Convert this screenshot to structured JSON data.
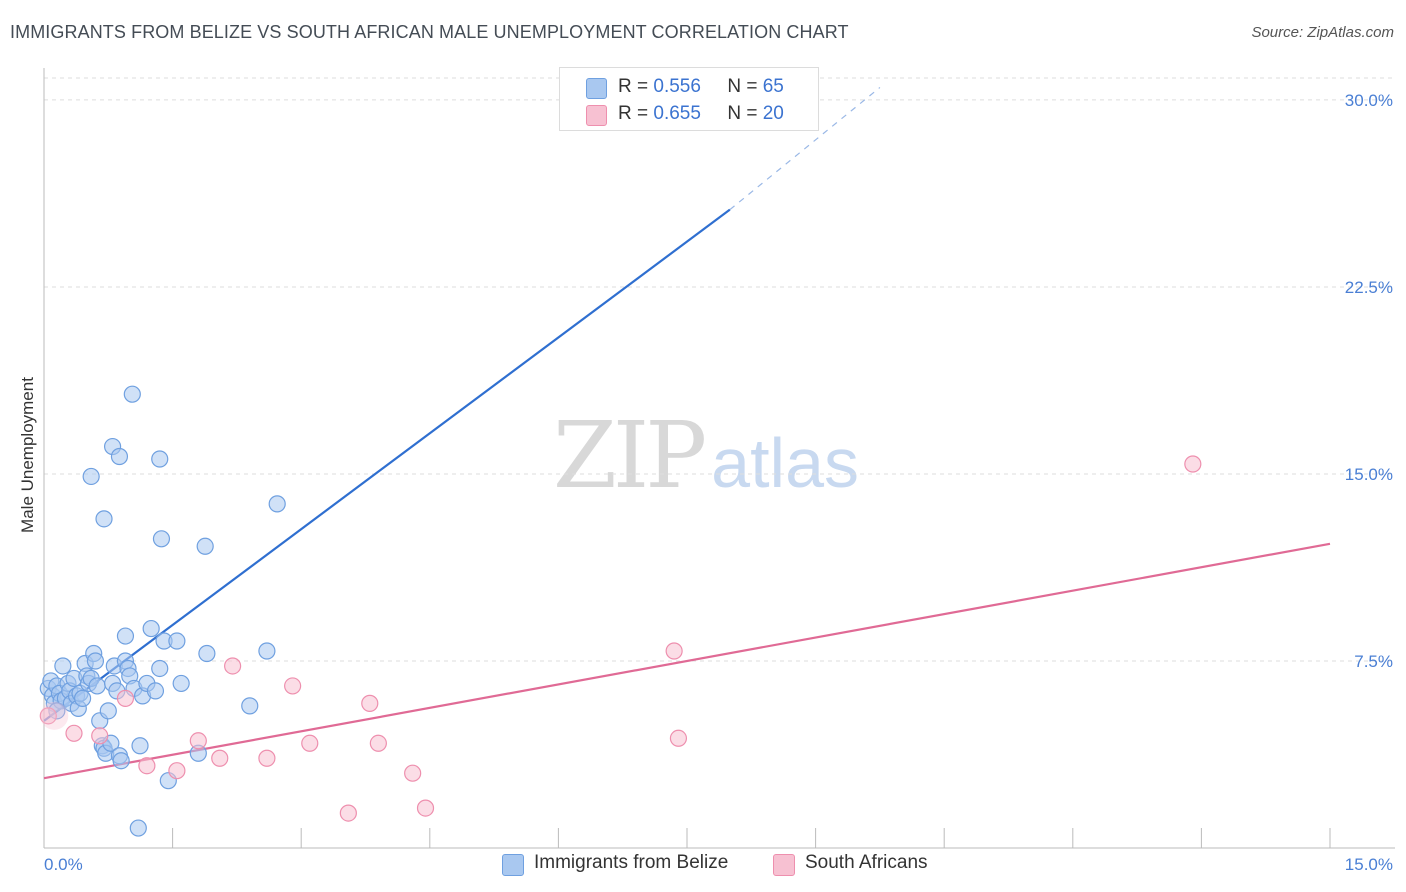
{
  "title": "IMMIGRANTS FROM BELIZE VS SOUTH AFRICAN MALE UNEMPLOYMENT CORRELATION CHART",
  "source": "Source: ZipAtlas.com",
  "watermark": {
    "zip": "ZIP",
    "atlas": "atlas"
  },
  "legend": {
    "rows": [
      {
        "r_label": "R =",
        "r_value": "0.556",
        "n_label": "N =",
        "n_value": "65"
      },
      {
        "r_label": "R =",
        "r_value": "0.655",
        "n_label": "N =",
        "n_value": "20"
      }
    ],
    "series_labels": [
      "Immigrants from Belize",
      "South Africans"
    ]
  },
  "colors": {
    "blue_fill": "#a9c8f0",
    "blue_stroke": "#6fa0e0",
    "blue_line": "#2f6fd0",
    "pink_fill": "#f7c1d2",
    "pink_stroke": "#ee8fae",
    "pink_line": "#e06a95",
    "tick_text": "#4a7fd4",
    "grid": "#dedede"
  },
  "chart_data": {
    "type": "scatter",
    "title": "IMMIGRANTS FROM BELIZE VS SOUTH AFRICAN MALE UNEMPLOYMENT CORRELATION CHART",
    "xlabel": "",
    "ylabel": "Male Unemployment",
    "xlim": [
      0,
      15
    ],
    "ylim": [
      0,
      31
    ],
    "x_tick_labels": [
      "0.0%",
      "15.0%"
    ],
    "y_ticks": [
      7.5,
      15.0,
      22.5,
      30.0
    ],
    "y_tick_labels": [
      "7.5%",
      "15.0%",
      "22.5%",
      "30.0%"
    ],
    "series": [
      {
        "name": "Immigrants from Belize",
        "R": 0.556,
        "N": 65,
        "points": [
          [
            0.05,
            6.4
          ],
          [
            0.08,
            6.7
          ],
          [
            0.1,
            6.1
          ],
          [
            0.12,
            5.8
          ],
          [
            0.15,
            6.5
          ],
          [
            0.18,
            6.2
          ],
          [
            0.2,
            5.9
          ],
          [
            0.22,
            7.3
          ],
          [
            0.25,
            6.0
          ],
          [
            0.28,
            6.6
          ],
          [
            0.3,
            6.3
          ],
          [
            0.32,
            5.8
          ],
          [
            0.35,
            6.8
          ],
          [
            0.38,
            6.1
          ],
          [
            0.4,
            5.6
          ],
          [
            0.42,
            6.2
          ],
          [
            0.45,
            6.0
          ],
          [
            0.48,
            7.4
          ],
          [
            0.5,
            6.9
          ],
          [
            0.52,
            6.6
          ],
          [
            0.55,
            6.8
          ],
          [
            0.58,
            7.8
          ],
          [
            0.6,
            7.5
          ],
          [
            0.62,
            6.5
          ],
          [
            0.65,
            5.1
          ],
          [
            0.68,
            4.1
          ],
          [
            0.7,
            4.0
          ],
          [
            0.72,
            3.8
          ],
          [
            0.75,
            5.5
          ],
          [
            0.78,
            4.2
          ],
          [
            0.8,
            6.6
          ],
          [
            0.82,
            7.3
          ],
          [
            0.85,
            6.3
          ],
          [
            0.88,
            3.7
          ],
          [
            0.9,
            3.5
          ],
          [
            0.95,
            7.5
          ],
          [
            0.98,
            7.2
          ],
          [
            1.0,
            6.9
          ],
          [
            1.05,
            6.4
          ],
          [
            1.1,
            0.8
          ],
          [
            1.12,
            4.1
          ],
          [
            1.15,
            6.1
          ],
          [
            1.2,
            6.6
          ],
          [
            1.25,
            8.8
          ],
          [
            1.3,
            6.3
          ],
          [
            1.35,
            7.2
          ],
          [
            1.4,
            8.3
          ],
          [
            1.45,
            2.7
          ],
          [
            1.55,
            8.3
          ],
          [
            1.6,
            6.6
          ],
          [
            1.8,
            3.8
          ],
          [
            1.9,
            7.8
          ],
          [
            2.4,
            5.7
          ],
          [
            2.6,
            7.9
          ],
          [
            0.55,
            14.9
          ],
          [
            0.7,
            13.2
          ],
          [
            0.8,
            16.1
          ],
          [
            0.88,
            15.7
          ],
          [
            1.03,
            18.2
          ],
          [
            1.35,
            15.6
          ],
          [
            1.37,
            12.4
          ],
          [
            1.88,
            12.1
          ],
          [
            2.72,
            13.8
          ],
          [
            0.95,
            8.5
          ],
          [
            0.15,
            5.5
          ]
        ]
      },
      {
        "name": "South Africans",
        "R": 0.655,
        "N": 20,
        "points": [
          [
            0.05,
            5.3
          ],
          [
            0.35,
            4.6
          ],
          [
            0.65,
            4.5
          ],
          [
            0.95,
            6.0
          ],
          [
            1.2,
            3.3
          ],
          [
            1.55,
            3.1
          ],
          [
            1.8,
            4.3
          ],
          [
            2.05,
            3.6
          ],
          [
            2.2,
            7.3
          ],
          [
            2.6,
            3.6
          ],
          [
            2.9,
            6.5
          ],
          [
            3.1,
            4.2
          ],
          [
            3.55,
            1.4
          ],
          [
            3.8,
            5.8
          ],
          [
            3.9,
            4.2
          ],
          [
            4.3,
            3.0
          ],
          [
            4.45,
            1.6
          ],
          [
            7.35,
            7.9
          ],
          [
            7.4,
            4.4
          ],
          [
            13.4,
            15.4
          ]
        ]
      }
    ],
    "trendlines": [
      {
        "series": "Immigrants from Belize",
        "x0": 0.0,
        "y0": 5.1,
        "x1": 8.0,
        "y1": 25.6,
        "dashed_to_x": 9.75,
        "dashed_to_y": 30.5
      },
      {
        "series": "South Africans",
        "x0": 0.0,
        "y0": 2.8,
        "x1": 15.0,
        "y1": 12.2
      }
    ]
  }
}
